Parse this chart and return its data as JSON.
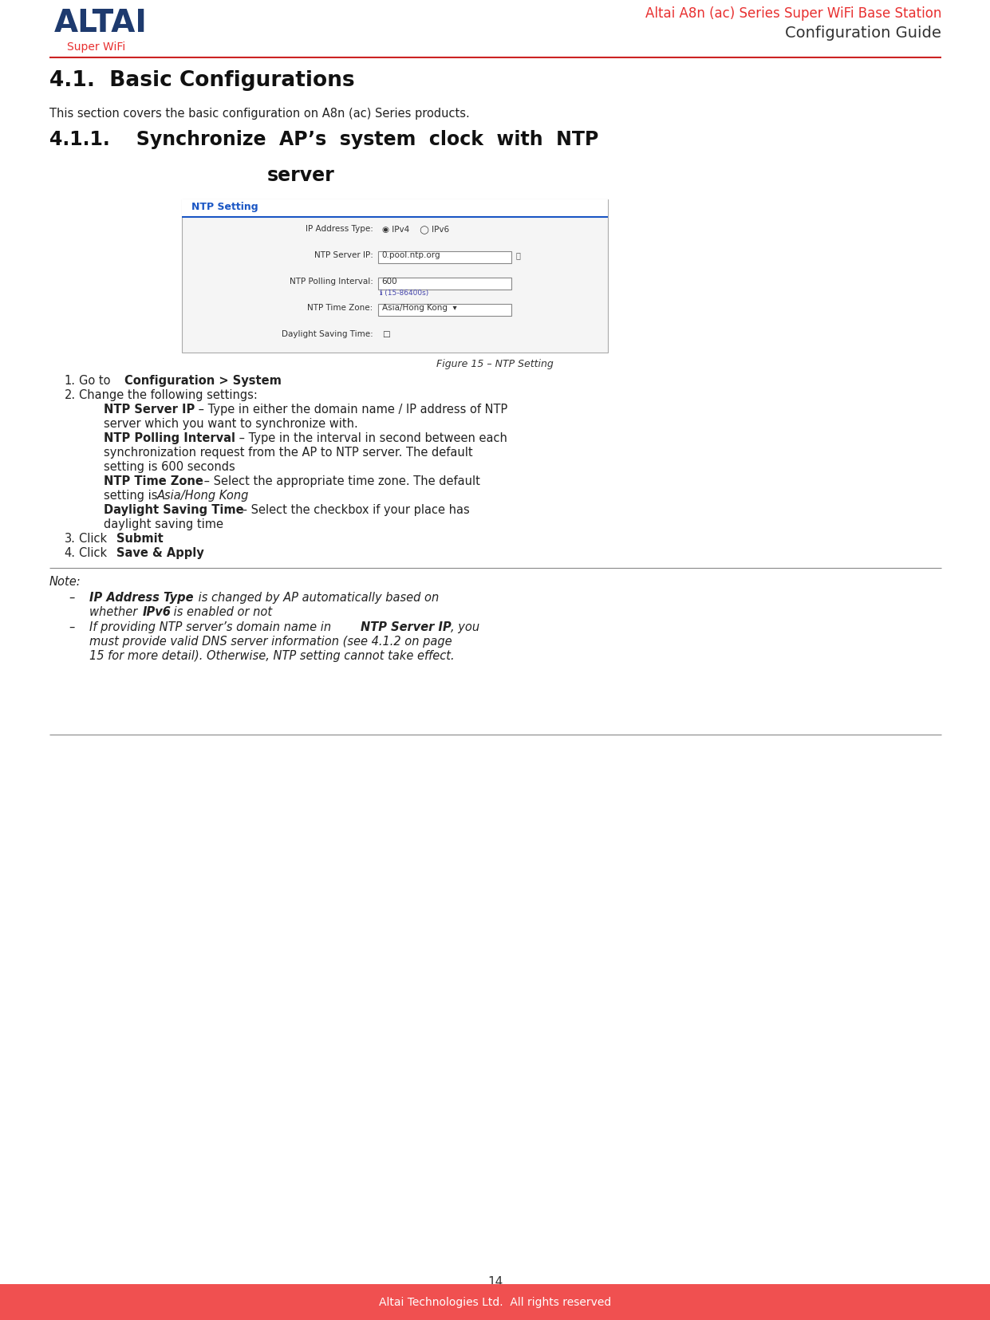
{
  "page_width": 12.41,
  "page_height": 16.55,
  "background_color": "#ffffff",
  "header_red_color": "#e83030",
  "header_title_line1": "Altai A8n (ac) Series Super WiFi Base Station",
  "header_title_line2": "Configuration Guide",
  "header_blue_color": "#1e3a6e",
  "altai_text": "ALTAI",
  "superwifi_text": "Super WiFi",
  "red_line_color": "#cc2222",
  "section_title": "4.1.  Basic Configurations",
  "section_intro": "This section covers the basic configuration on A8n (ac) Series products.",
  "subsection_title_line1": "4.1.1.    Synchronize  AP’s  system  clock  with  NTP",
  "subsection_title_line2": "server",
  "figure_caption": "Figure 15 – NTP Setting",
  "ntp_panel_title": "NTP Setting",
  "ntp_panel_color": "#1a56c4",
  "page_number": "14",
  "footer_bg": "#f05050",
  "footer_text": "Altai Technologies Ltd.  All rights reserved",
  "footer_text_color": "#ffffff",
  "text_color": "#222222"
}
